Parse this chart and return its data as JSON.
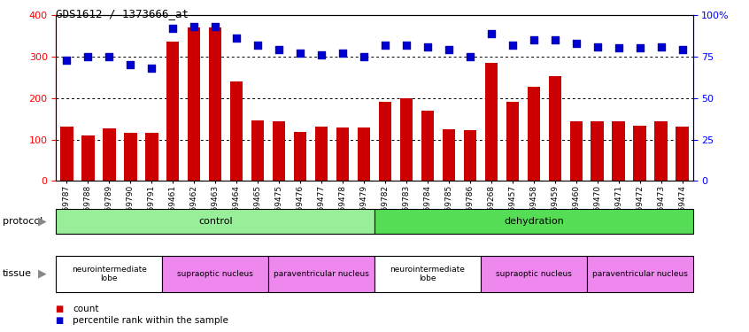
{
  "title": "GDS1612 / 1373666_at",
  "samples": [
    "GSM69787",
    "GSM69788",
    "GSM69789",
    "GSM69790",
    "GSM69791",
    "GSM69461",
    "GSM69462",
    "GSM69463",
    "GSM69464",
    "GSM69465",
    "GSM69475",
    "GSM69476",
    "GSM69477",
    "GSM69478",
    "GSM69479",
    "GSM69782",
    "GSM69783",
    "GSM69784",
    "GSM69785",
    "GSM69786",
    "GSM69268",
    "GSM69457",
    "GSM69458",
    "GSM69459",
    "GSM69460",
    "GSM69470",
    "GSM69471",
    "GSM69472",
    "GSM69473",
    "GSM69474"
  ],
  "counts": [
    130,
    110,
    127,
    115,
    115,
    335,
    370,
    370,
    240,
    145,
    143,
    118,
    130,
    128,
    128,
    190,
    200,
    170,
    125,
    123,
    285,
    190,
    228,
    253,
    143,
    143,
    143,
    133,
    143,
    130
  ],
  "percentiles": [
    73,
    75,
    75,
    70,
    68,
    92,
    93,
    93,
    86,
    82,
    79,
    77,
    76,
    77,
    75,
    82,
    82,
    81,
    79,
    75,
    89,
    82,
    85,
    85,
    83,
    81,
    80,
    80,
    81,
    79
  ],
  "bar_color": "#cc0000",
  "dot_color": "#0000cc",
  "ylim_left": [
    0,
    400
  ],
  "ylim_right": [
    0,
    100
  ],
  "yticks_left": [
    0,
    100,
    200,
    300,
    400
  ],
  "yticks_right": [
    0,
    25,
    50,
    75,
    100
  ],
  "ytick_right_labels": [
    "0",
    "25",
    "50",
    "75",
    "100%"
  ],
  "grid_values": [
    100,
    200,
    300
  ],
  "bar_width": 0.6,
  "dot_size": 35,
  "dot_marker": "s",
  "legend_count_label": "count",
  "legend_pct_label": "percentile rank within the sample",
  "protocol_label": "protocol",
  "tissue_label": "tissue",
  "control_label": "control",
  "dehydration_label": "dehydration",
  "control_color": "#99ee99",
  "dehydration_color": "#55dd55",
  "tissue_groups": [
    {
      "label": "neurointermediate\nlobe",
      "start": 0,
      "end": 5,
      "color": "#ffffff"
    },
    {
      "label": "supraoptic nucleus",
      "start": 5,
      "end": 10,
      "color": "#ee88ee"
    },
    {
      "label": "paraventricular nucleus",
      "start": 10,
      "end": 15,
      "color": "#ee88ee"
    },
    {
      "label": "neurointermediate\nlobe",
      "start": 15,
      "end": 20,
      "color": "#ffffff"
    },
    {
      "label": "supraoptic nucleus",
      "start": 20,
      "end": 25,
      "color": "#ee88ee"
    },
    {
      "label": "paraventricular nucleus",
      "start": 25,
      "end": 30,
      "color": "#ee88ee"
    }
  ]
}
